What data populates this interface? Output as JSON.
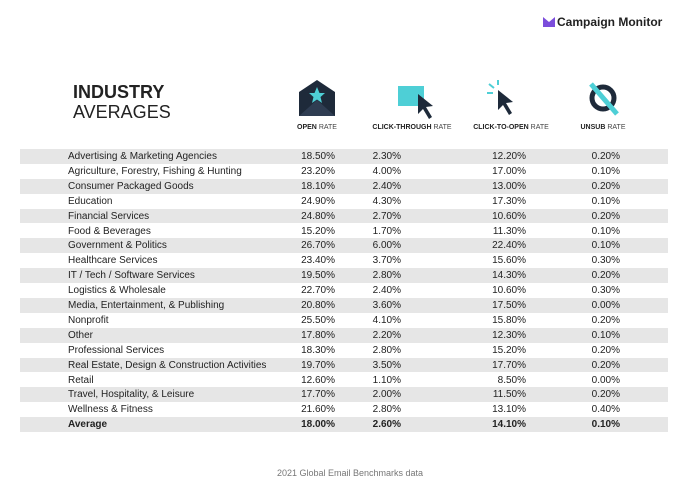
{
  "brand": "Campaign Monitor",
  "title": {
    "line1": "INDUSTRY",
    "line2": "AVERAGES"
  },
  "table": {
    "columns": [
      {
        "bold": "OPEN",
        "light": "RATE"
      },
      {
        "bold": "CLICK-THROUGH",
        "light": "RATE"
      },
      {
        "bold": "CLICK-TO-OPEN",
        "light": "RATE"
      },
      {
        "bold": "UNSUB",
        "light": "RATE"
      }
    ],
    "rows": [
      [
        "Advertising & Marketing Agencies",
        "18.50%",
        "2.30%",
        "12.20%",
        "0.20%"
      ],
      [
        "Agriculture, Forestry, Fishing & Hunting",
        "23.20%",
        "4.00%",
        "17.00%",
        "0.10%"
      ],
      [
        "Consumer Packaged Goods",
        "18.10%",
        "2.40%",
        "13.00%",
        "0.20%"
      ],
      [
        "Education",
        "24.90%",
        "4.30%",
        "17.30%",
        "0.10%"
      ],
      [
        "Financial Services",
        "24.80%",
        "2.70%",
        "10.60%",
        "0.20%"
      ],
      [
        "Food & Beverages",
        "15.20%",
        "1.70%",
        "11.30%",
        "0.10%"
      ],
      [
        "Government & Politics",
        "26.70%",
        "6.00%",
        "22.40%",
        "0.10%"
      ],
      [
        "Healthcare Services",
        "23.40%",
        "3.70%",
        "15.60%",
        "0.30%"
      ],
      [
        "IT / Tech / Software Services",
        "19.50%",
        "2.80%",
        "14.30%",
        "0.20%"
      ],
      [
        "Logistics & Wholesale",
        "22.70%",
        "2.40%",
        "10.60%",
        "0.30%"
      ],
      [
        "Media, Entertainment, & Publishing",
        "20.80%",
        "3.60%",
        "17.50%",
        "0.00%"
      ],
      [
        "Nonprofit",
        "25.50%",
        "4.10%",
        "15.80%",
        "0.20%"
      ],
      [
        "Other",
        "17.80%",
        "2.20%",
        "12.30%",
        "0.10%"
      ],
      [
        "Professional Services",
        "18.30%",
        "2.80%",
        "15.20%",
        "0.20%"
      ],
      [
        "Real Estate, Design & Construction Activities",
        "19.70%",
        "3.50%",
        "17.70%",
        "0.20%"
      ],
      [
        "Retail",
        "12.60%",
        "1.10%",
        "8.50%",
        "0.00%"
      ],
      [
        "Travel, Hospitality, & Leisure",
        "17.70%",
        "2.00%",
        "11.50%",
        "0.20%"
      ],
      [
        "Wellness & Fitness",
        "21.60%",
        "2.80%",
        "13.10%",
        "0.40%"
      ]
    ],
    "total": [
      "Average",
      "18.00%",
      "2.60%",
      "14.10%",
      "0.10%"
    ]
  },
  "footer": "2021 Global Email Benchmarks data"
}
